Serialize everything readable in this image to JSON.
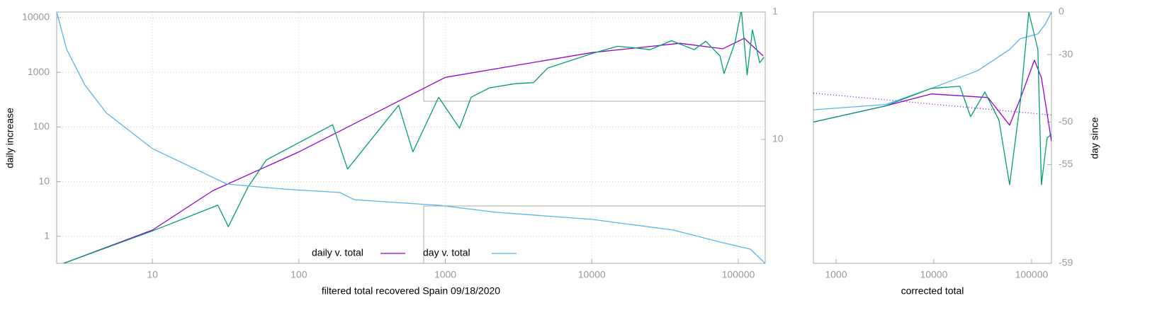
{
  "chart_data": [
    {
      "type": "line",
      "xlabel": "filtered total recovered Spain 09/18/2020",
      "ylabel": "daily increase",
      "xscale": "log",
      "yscale": "log",
      "y2scale": "log",
      "xlim": [
        2.22,
        152800
      ],
      "ylim": [
        0.32,
        12700
      ],
      "y2lim": [
        1,
        93.8
      ],
      "xticks": [
        10,
        100,
        1000,
        10000,
        100000
      ],
      "yticks": [
        1,
        10,
        100,
        1000,
        10000
      ],
      "y2ticks": [
        1,
        10
      ],
      "grid": true,
      "series": [
        {
          "name": "daily v. total",
          "color": "#9400d3",
          "axis": "y",
          "x": [
            2.48,
            10,
            25.8,
            100,
            1000,
            10000,
            40000,
            78500,
            110000,
            148000
          ],
          "values": [
            0.32,
            1.3,
            6.8,
            35,
            810,
            2300,
            3400,
            2700,
            4200,
            2000
          ]
        },
        {
          "color": "#009e73",
          "axis": "y",
          "x": [
            2.48,
            10,
            28,
            33,
            45,
            60,
            170,
            215,
            480,
            600,
            900,
            1250,
            1500,
            2000,
            3000,
            4000,
            5000,
            10000,
            15000,
            20000,
            25000,
            35000,
            50000,
            60000,
            75000,
            80000,
            95000,
            105000,
            115000,
            125000,
            140000,
            150000
          ],
          "values": [
            0.32,
            1.25,
            3.7,
            1.5,
            8,
            25,
            110,
            17,
            250,
            35,
            350,
            95,
            350,
            520,
            620,
            650,
            1200,
            2200,
            3000,
            2800,
            2600,
            3800,
            2600,
            3700,
            2000,
            950,
            3500,
            14000,
            900,
            6000,
            1500,
            1900
          ]
        },
        {
          "name": "day v. total",
          "color": "#56b4e9",
          "axis": "y2",
          "x": [
            2.22,
            2.6,
            3.46,
            4.85,
            10,
            32.2,
            78.6,
            191,
            239,
            912,
            2220,
            10000,
            36000,
            78000,
            121000,
            152800
          ],
          "values": [
            1,
            1.97,
            3.74,
            6.2,
            11.8,
            22.4,
            24.5,
            26.1,
            29.7,
            32.9,
            37.3,
            42.4,
            51.4,
            64.6,
            72.6,
            93.8
          ]
        }
      ]
    },
    {
      "type": "line",
      "xlabel": "corrected total",
      "y2label": "day since",
      "xscale": "log",
      "y2scale": "log-distance",
      "xlim": [
        587,
        159700
      ],
      "y2lim": [
        0,
        -59
      ],
      "xticks": [
        1000,
        10000,
        100000
      ],
      "y2ticks": [
        0,
        -30,
        -50,
        -55,
        -59
      ],
      "grid": false,
      "series": [
        {
          "color": "#56b4e9",
          "axis": "y2",
          "x": [
            587,
            3210,
            9440,
            28100,
            59600,
            76500,
            116000,
            137000,
            159700
          ],
          "values": [
            -47.8,
            -46.7,
            -42.7,
            -36.9,
            -27.4,
            -21.2,
            -18,
            -11.2,
            0
          ]
        },
        {
          "color": "#9400d3",
          "axis": "y2",
          "x": [
            587,
            3210,
            9440,
            35800,
            59600,
            76500,
            107000,
            126000,
            159700
          ],
          "values": [
            -50,
            -47,
            -44.2,
            -45.1,
            -50.5,
            -45.4,
            -32.6,
            -39.4,
            -52.7
          ]
        },
        {
          "color": "#9400d3",
          "axis": "y2",
          "dash": "dotted",
          "x": [
            587,
            159700
          ],
          "values": [
            -44,
            -48.8
          ]
        },
        {
          "color": "#009e73",
          "axis": "y2",
          "x": [
            587,
            3210,
            9440,
            18500,
            23800,
            33300,
            46400,
            59600,
            76500,
            93600,
            116000,
            126000,
            144000,
            159700
          ],
          "values": [
            -50,
            -47,
            -42.7,
            -42.1,
            -49.1,
            -43.7,
            -49.7,
            -56.4,
            -46.3,
            0,
            -27.4,
            -56.4,
            -52.3,
            -51.8
          ]
        }
      ]
    }
  ]
}
